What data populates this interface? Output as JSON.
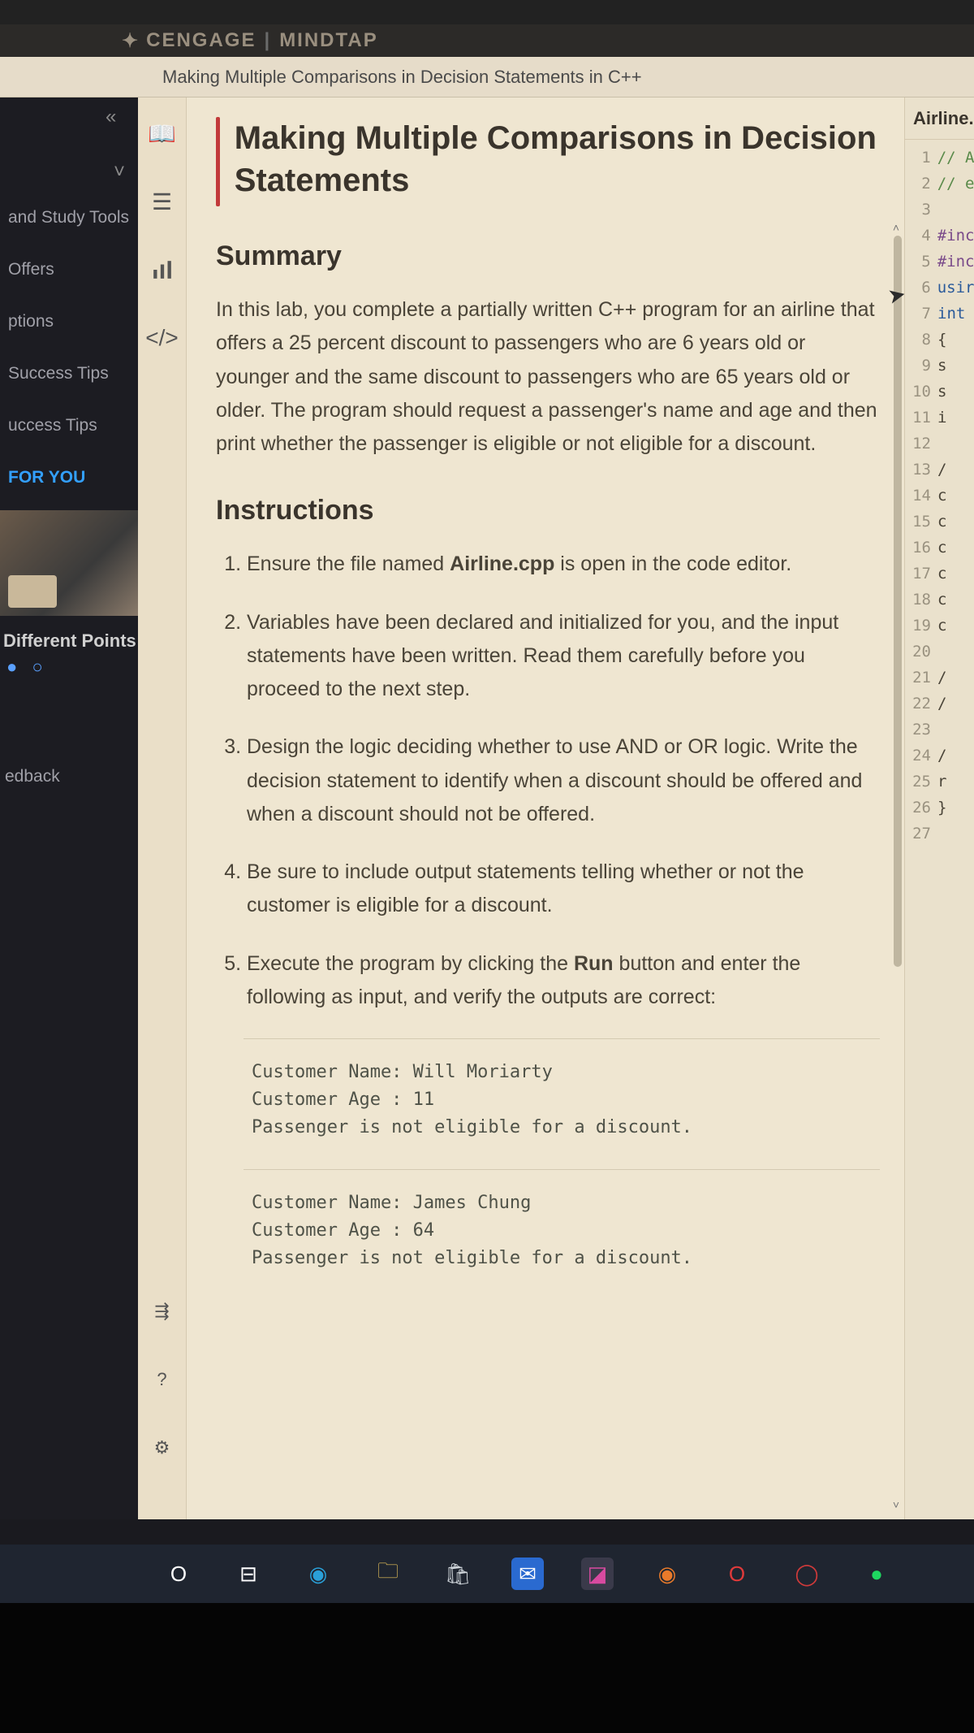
{
  "brand": {
    "name": "CENGAGE",
    "product": "MINDTAP"
  },
  "tabTitle": "Making Multiple Comparisons in Decision Statements in C++",
  "leftNav": {
    "items": [
      "and Study Tools",
      "Offers",
      "ptions",
      "Success Tips",
      "uccess Tips"
    ],
    "forYou": "FOR YOU",
    "caption": "Different Points",
    "feedback": "edback"
  },
  "content": {
    "title": "Making Multiple Comparisons in Decision Statements",
    "summaryHeading": "Summary",
    "summaryText": "In this lab, you complete a partially written C++ program for an airline that offers a 25 percent discount to passengers who are 6 years old or younger and the same discount to passengers who are 65 years old or older. The program should request a passenger's name and age and then print whether the passenger is eligible or not eligible for a discount.",
    "instructionsHeading": "Instructions",
    "step1_a": "Ensure the file named ",
    "step1_b": "Airline.cpp",
    "step1_c": " is open in the code editor.",
    "step2": "Variables have been declared and initialized for you, and the input statements have been written. Read them carefully before you proceed to the next step.",
    "step3": "Design the logic deciding whether to use AND or OR logic. Write the decision statement to identify when a discount should be offered and when a discount should not be offered.",
    "step4": "Be sure to include output statements telling whether or not the customer is eligible for a discount.",
    "step5_a": "Execute the program by clicking the ",
    "step5_b": "Run",
    "step5_c": " button and enter the following as input, and verify the outputs are correct:",
    "sample1": "Customer Name: Will Moriarty\nCustomer Age : 11\nPassenger is not eligible for a discount.",
    "sample2": "Customer Name: James Chung\nCustomer Age : 64\nPassenger is not eligible for a discount."
  },
  "codePanel": {
    "fileTab": "Airline.",
    "lines": [
      {
        "n": 1,
        "cls": "tok-comment",
        "t": "// A"
      },
      {
        "n": 2,
        "cls": "tok-comment",
        "t": "// e"
      },
      {
        "n": 3,
        "cls": "tok-plain",
        "t": ""
      },
      {
        "n": 4,
        "cls": "tok-pre",
        "t": "#inc"
      },
      {
        "n": 5,
        "cls": "tok-pre",
        "t": "#inc"
      },
      {
        "n": 6,
        "cls": "tok-kw",
        "t": "usir"
      },
      {
        "n": 7,
        "cls": "tok-kw",
        "t": "int"
      },
      {
        "n": 8,
        "cls": "tok-plain",
        "t": "{"
      },
      {
        "n": 9,
        "cls": "tok-plain",
        "t": "  s"
      },
      {
        "n": 10,
        "cls": "tok-plain",
        "t": "  s"
      },
      {
        "n": 11,
        "cls": "tok-plain",
        "t": "  i"
      },
      {
        "n": 12,
        "cls": "tok-plain",
        "t": ""
      },
      {
        "n": 13,
        "cls": "tok-plain",
        "t": "  /"
      },
      {
        "n": 14,
        "cls": "tok-plain",
        "t": "  c"
      },
      {
        "n": 15,
        "cls": "tok-plain",
        "t": "  c"
      },
      {
        "n": 16,
        "cls": "tok-plain",
        "t": "  c"
      },
      {
        "n": 17,
        "cls": "tok-plain",
        "t": "  c"
      },
      {
        "n": 18,
        "cls": "tok-plain",
        "t": "  c"
      },
      {
        "n": 19,
        "cls": "tok-plain",
        "t": "  c"
      },
      {
        "n": 20,
        "cls": "tok-plain",
        "t": ""
      },
      {
        "n": 21,
        "cls": "tok-plain",
        "t": "  /"
      },
      {
        "n": 22,
        "cls": "tok-plain",
        "t": "  /"
      },
      {
        "n": 23,
        "cls": "tok-plain",
        "t": ""
      },
      {
        "n": 24,
        "cls": "tok-plain",
        "t": "  /"
      },
      {
        "n": 25,
        "cls": "tok-plain",
        "t": "  r"
      },
      {
        "n": 26,
        "cls": "tok-plain",
        "t": "}"
      },
      {
        "n": 27,
        "cls": "tok-plain",
        "t": ""
      }
    ]
  },
  "taskbar": {
    "icons": [
      {
        "name": "cortana-icon",
        "glyph": "O",
        "bg": "transparent",
        "fg": "#ffffff"
      },
      {
        "name": "taskview-icon",
        "glyph": "⊟",
        "bg": "transparent",
        "fg": "#ffffff"
      },
      {
        "name": "edge-icon",
        "glyph": "◉",
        "bg": "transparent",
        "fg": "#2aa0d8"
      },
      {
        "name": "explorer-icon",
        "glyph": "🗀",
        "bg": "transparent",
        "fg": "#e8c25a"
      },
      {
        "name": "store-icon",
        "glyph": "🛍",
        "bg": "transparent",
        "fg": "#cfd5da"
      },
      {
        "name": "mail-icon",
        "glyph": "✉",
        "bg": "#2a6ad0",
        "fg": "#ffffff"
      },
      {
        "name": "photos-icon",
        "glyph": "◪",
        "bg": "#3a3a4a",
        "fg": "#d84aa0"
      },
      {
        "name": "firefox-icon",
        "glyph": "◉",
        "bg": "transparent",
        "fg": "#e87a2a"
      },
      {
        "name": "opera-icon",
        "glyph": "O",
        "bg": "transparent",
        "fg": "#e03a3a"
      },
      {
        "name": "operagx-icon",
        "glyph": "◯",
        "bg": "transparent",
        "fg": "#d03a3a"
      },
      {
        "name": "spotify-icon",
        "glyph": "●",
        "bg": "transparent",
        "fg": "#1ed760"
      }
    ]
  }
}
